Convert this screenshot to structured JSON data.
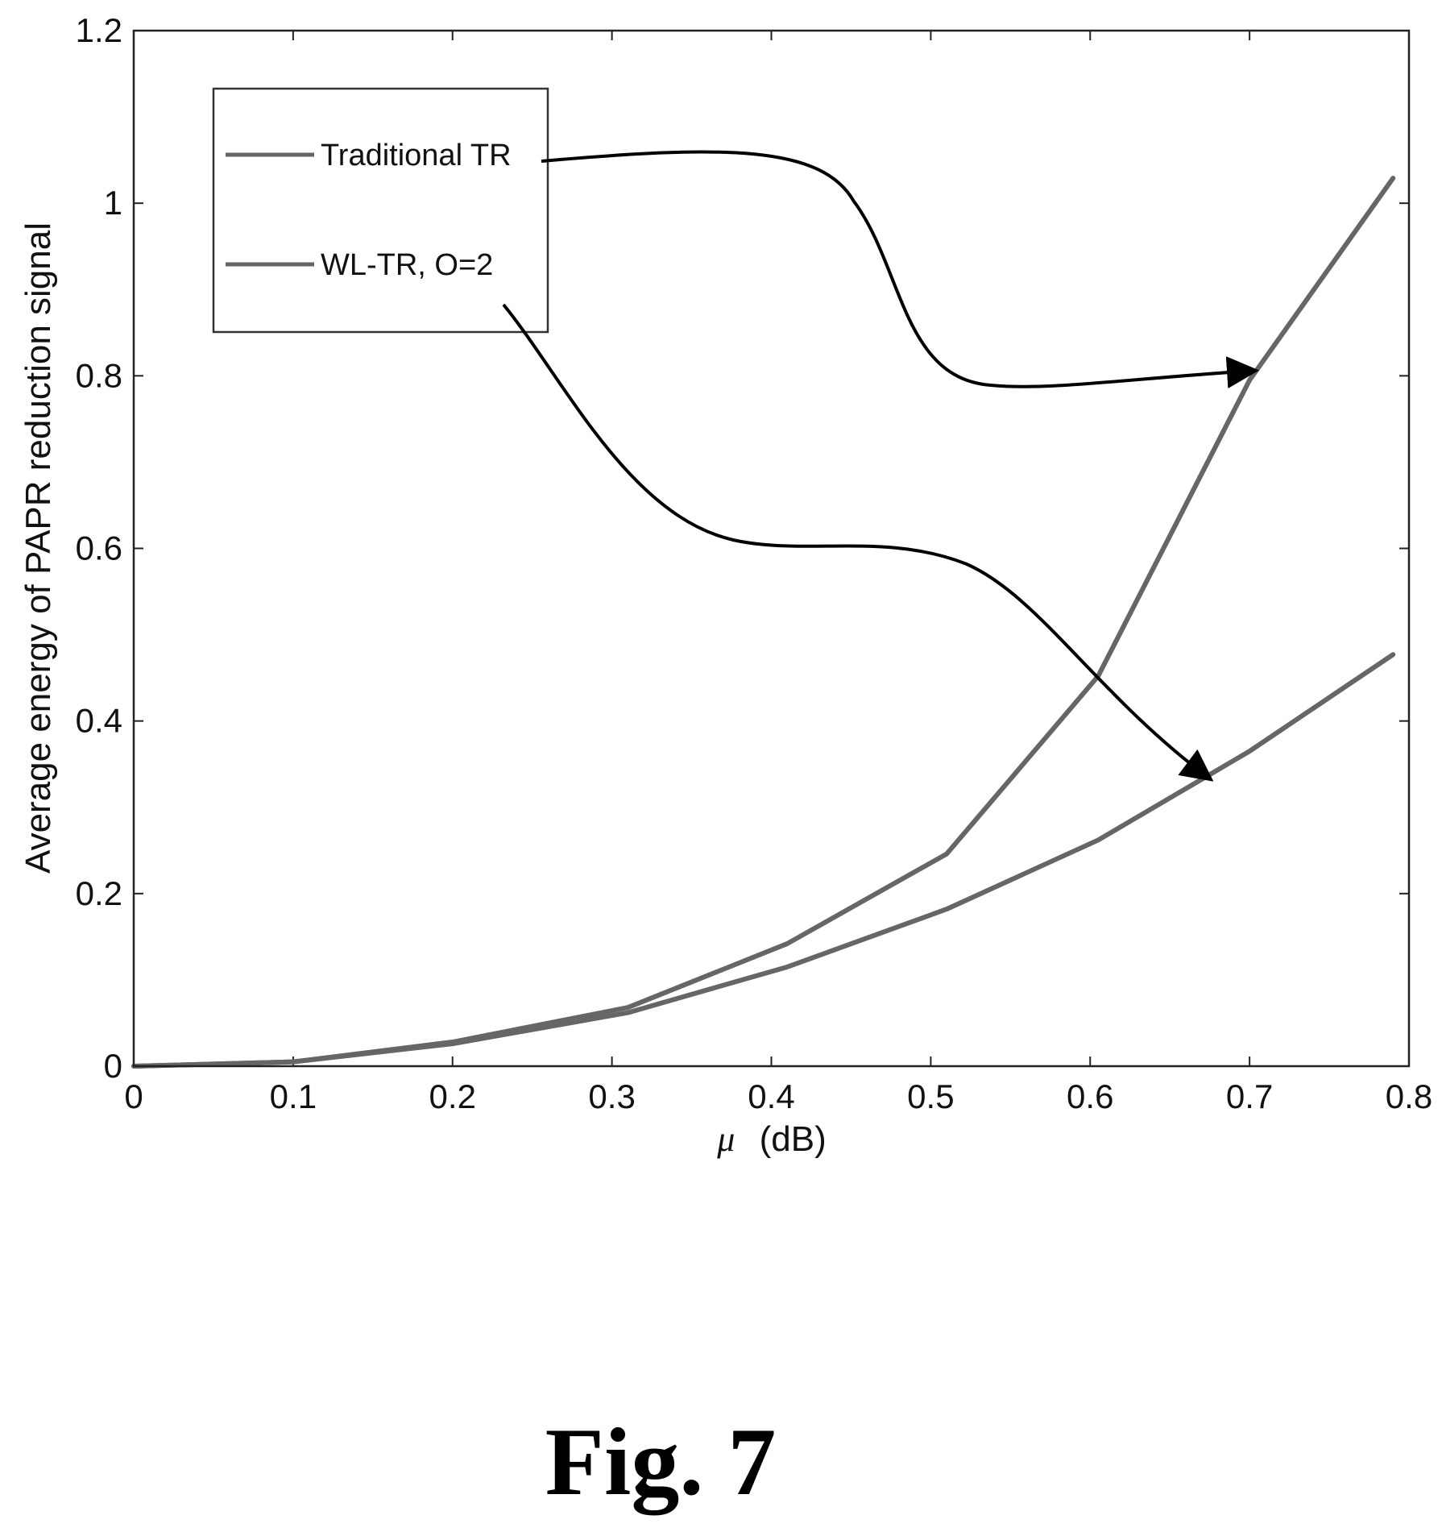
{
  "caption": "Fig. 7",
  "chart_data": {
    "type": "line",
    "xlabel_symbol": "μ",
    "xlabel_unit": "(dB)",
    "ylabel": "Average energy of PAPR reduction signal",
    "xlim": [
      0,
      0.8
    ],
    "ylim": [
      0,
      1.2
    ],
    "xticks": [
      0,
      0.1,
      0.2,
      0.3,
      0.4,
      0.5,
      0.6,
      0.7,
      0.8
    ],
    "xtick_labels": [
      "0",
      "0.1",
      "0.2",
      "0.3",
      "0.4",
      "0.5",
      "0.6",
      "0.7",
      "0.8"
    ],
    "yticks": [
      0,
      0.2,
      0.4,
      0.6,
      0.8,
      1.0,
      1.2
    ],
    "ytick_labels": [
      "0",
      "0.2",
      "0.4",
      "0.6",
      "0.8",
      "1",
      "1.2"
    ],
    "grid": false,
    "legend_position": "top-left",
    "series": [
      {
        "name": "Traditional TR",
        "color": "#666666",
        "x": [
          0,
          0.1,
          0.2,
          0.31,
          0.41,
          0.51,
          0.605,
          0.7,
          0.79
        ],
        "y": [
          0,
          0.005,
          0.028,
          0.068,
          0.142,
          0.246,
          0.452,
          0.795,
          1.029
        ]
      },
      {
        "name": "WL-TR, O=2",
        "color": "#666666",
        "x": [
          0,
          0.1,
          0.2,
          0.31,
          0.41,
          0.51,
          0.605,
          0.7,
          0.79
        ],
        "y": [
          0,
          0.005,
          0.026,
          0.062,
          0.115,
          0.182,
          0.262,
          0.365,
          0.477
        ]
      }
    ],
    "annotations": [
      {
        "from": "Traditional TR",
        "to": [
          0.705,
          0.808
        ]
      },
      {
        "from": "WL-TR, O=2",
        "to": [
          0.67,
          0.335
        ]
      }
    ]
  }
}
